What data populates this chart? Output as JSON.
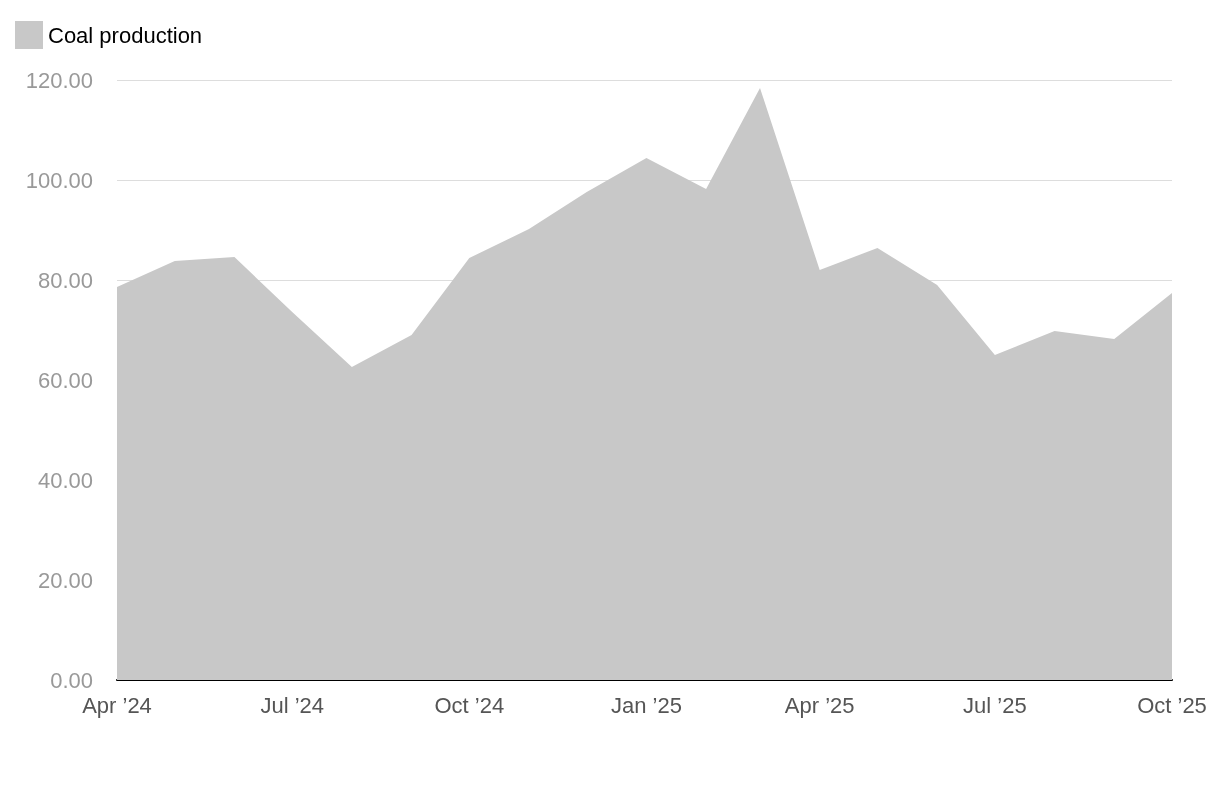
{
  "chart_data": {
    "type": "area",
    "x": [
      "2024-04",
      "2024-05",
      "2024-06",
      "2024-07",
      "2024-08",
      "2024-09",
      "2024-10",
      "2024-11",
      "2024-12",
      "2025-01",
      "2025-02",
      "2025-03",
      "2025-04",
      "2025-05",
      "2025-06",
      "2025-07",
      "2025-08",
      "2025-09",
      "2025-10"
    ],
    "series": [
      {
        "name": "Coal production",
        "color": "#c8c8c8",
        "values": [
          78.6,
          83.8,
          84.6,
          73.6,
          62.6,
          69,
          84.4,
          90.2,
          97.6,
          104.4,
          98.2,
          118.4,
          82,
          86.4,
          79,
          65,
          69.8,
          68.2,
          77.4
        ]
      }
    ],
    "xlim": [
      "2024-04",
      "2025-10"
    ],
    "xticks": [
      {
        "value": "2024-04",
        "label": "Apr ’24"
      },
      {
        "value": "2024-07",
        "label": "Jul ’24"
      },
      {
        "value": "2024-10",
        "label": "Oct ’24"
      },
      {
        "value": "2025-01",
        "label": "Jan ’25"
      },
      {
        "value": "2025-04",
        "label": "Apr ’25"
      },
      {
        "value": "2025-07",
        "label": "Jul ’25"
      },
      {
        "value": "2025-10",
        "label": "Oct ’25"
      }
    ],
    "ylim": [
      0,
      120
    ],
    "yticks": [
      {
        "value": 0,
        "label": "0.00"
      },
      {
        "value": 20,
        "label": "20.00"
      },
      {
        "value": 40,
        "label": "40.00"
      },
      {
        "value": 60,
        "label": "60.00"
      },
      {
        "value": 80,
        "label": "80.00"
      },
      {
        "value": 100,
        "label": "100.00"
      },
      {
        "value": 120,
        "label": "120.00"
      }
    ],
    "grid": "y",
    "legend": "top left"
  }
}
